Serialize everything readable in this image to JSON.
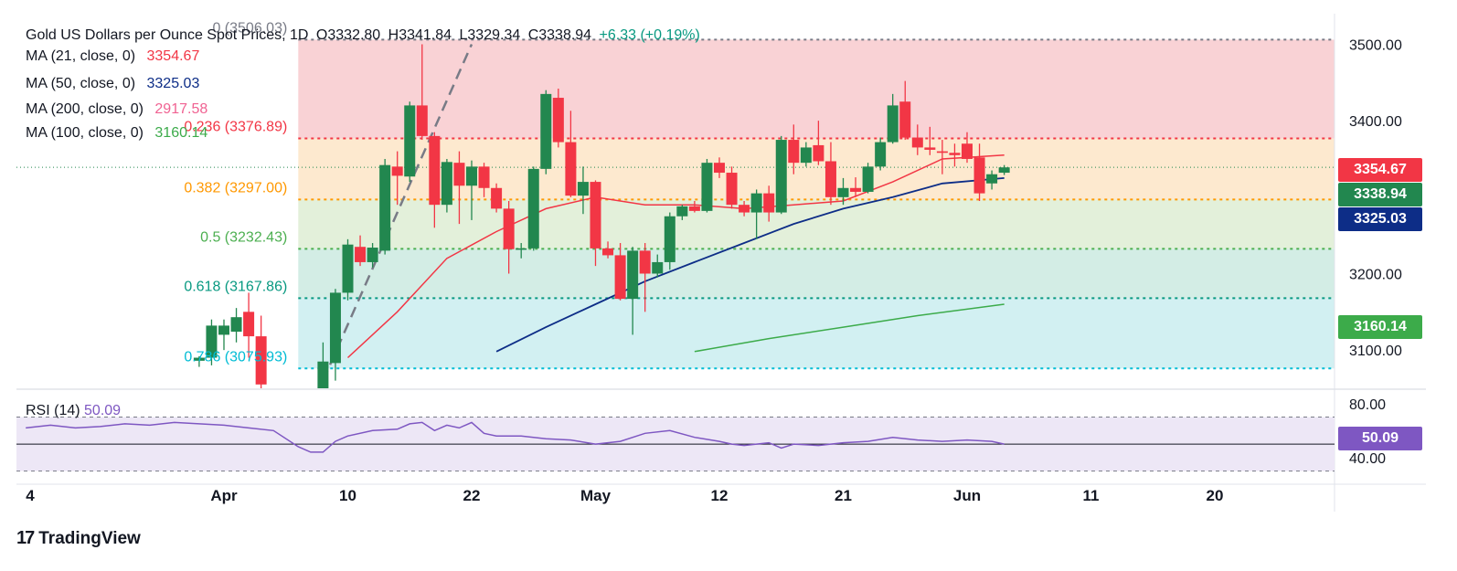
{
  "header": {
    "symbol": "Gold US Dollars per Ounce Spot Prices, 1D",
    "open": "O3332.80",
    "high": "H3341.84",
    "low": "L3329.34",
    "close": "C3338.94",
    "change": "+6.33 (+0.19%)",
    "change_color": "#089981"
  },
  "indicators": [
    {
      "name": "MA (21, close, 0)",
      "value": "3354.67",
      "color": "#f23645"
    },
    {
      "name": "MA (50, close, 0)",
      "value": "3325.03",
      "color": "#0d2d87"
    },
    {
      "name": "MA (200, close, 0)",
      "value": "2917.58",
      "color": "#f06292"
    },
    {
      "name": "MA (100, close, 0)",
      "value": "3160.14",
      "color": "#3cab4a"
    }
  ],
  "rsi": {
    "name": "RSI (14)",
    "value": "50.09",
    "color": "#7e57c2"
  },
  "price_tags": [
    {
      "label": "3354.67",
      "value": 3354.67,
      "color": "#f23645"
    },
    {
      "label": "3338.94",
      "value": 3338.94,
      "color": "#22874f"
    },
    {
      "label": "3325.03",
      "value": 3325.03,
      "color": "#0d2d87"
    },
    {
      "label": "3160.14",
      "value": 3160.14,
      "color": "#3cab4a"
    }
  ],
  "brand": {
    "name": "TradingView"
  },
  "chart_data": {
    "type": "candlestick",
    "y_axis": {
      "ticks": [
        3100,
        3200,
        3300,
        3400,
        3500
      ],
      "tick_labels": [
        "3100.00",
        "3200.00",
        "3300.00",
        "3400.00",
        "3500.00"
      ],
      "ylim": [
        3050,
        3540
      ],
      "position": "right"
    },
    "rsi_axis": {
      "ticks": [
        40,
        80
      ],
      "tick_labels": [
        "40.00",
        "80.00"
      ],
      "ylim": [
        25,
        90
      ],
      "bands": [
        30,
        70
      ],
      "midline": 50
    },
    "x_axis": {
      "tick_labels": [
        "4",
        "Apr",
        "10",
        "22",
        "May",
        "12",
        "21",
        "Jun",
        "11",
        "20"
      ],
      "tick_index": [
        -16,
        0,
        10,
        20,
        30,
        40,
        50,
        60,
        70,
        80
      ]
    },
    "fibonacci": [
      {
        "level": "0",
        "price": 3506.03,
        "label": "0 (3506.03)",
        "color": "#787b86"
      },
      {
        "level": "0.236",
        "price": 3376.89,
        "label": "0.236 (3376.89)",
        "color": "#f23645"
      },
      {
        "level": "0.382",
        "price": 3297.0,
        "label": "0.382 (3297.00)",
        "color": "#ff9800"
      },
      {
        "level": "0.5",
        "price": 3232.43,
        "label": "0.5 (3232.43)",
        "color": "#4caf50"
      },
      {
        "level": "0.618",
        "price": 3167.86,
        "label": "0.618 (3167.86)",
        "color": "#089981"
      },
      {
        "level": "0.786",
        "price": 3075.93,
        "label": "0.786 (3075.93)",
        "color": "#00bcd4"
      }
    ],
    "fib_zone_colors": [
      "#f9d2d5",
      "#fde9cf",
      "#e3f0da",
      "#d3ede5",
      "#d2f0f2"
    ],
    "trend_line": {
      "from": {
        "index": 8,
        "price": 3060
      },
      "to": {
        "index": 20,
        "price": 3500
      }
    },
    "candles": [
      {
        "i": -2,
        "o": 3086,
        "h": 3092,
        "l": 3078,
        "c": 3090
      },
      {
        "i": -1,
        "o": 3090,
        "h": 3140,
        "l": 3080,
        "c": 3132
      },
      {
        "i": 0,
        "o": 3120,
        "h": 3140,
        "l": 3100,
        "c": 3132
      },
      {
        "i": 1,
        "o": 3124,
        "h": 3155,
        "l": 3110,
        "c": 3143
      },
      {
        "i": 2,
        "o": 3150,
        "h": 3175,
        "l": 3090,
        "c": 3118
      },
      {
        "i": 3,
        "o": 3118,
        "h": 3145,
        "l": 3040,
        "c": 3055
      },
      {
        "i": 8,
        "o": 3000,
        "h": 3110,
        "l": 2970,
        "c": 3085
      },
      {
        "i": 9,
        "o": 3083,
        "h": 3180,
        "l": 3060,
        "c": 3175
      },
      {
        "i": 10,
        "o": 3175,
        "h": 3245,
        "l": 3165,
        "c": 3238
      },
      {
        "i": 11,
        "o": 3235,
        "h": 3250,
        "l": 3210,
        "c": 3215
      },
      {
        "i": 12,
        "o": 3215,
        "h": 3240,
        "l": 3208,
        "c": 3234
      },
      {
        "i": 13,
        "o": 3230,
        "h": 3350,
        "l": 3225,
        "c": 3342
      },
      {
        "i": 14,
        "o": 3340,
        "h": 3360,
        "l": 3290,
        "c": 3328
      },
      {
        "i": 15,
        "o": 3327,
        "h": 3425,
        "l": 3320,
        "c": 3420
      },
      {
        "i": 16,
        "o": 3420,
        "h": 3500,
        "l": 3375,
        "c": 3380
      },
      {
        "i": 17,
        "o": 3380,
        "h": 3385,
        "l": 3260,
        "c": 3290
      },
      {
        "i": 18,
        "o": 3290,
        "h": 3350,
        "l": 3280,
        "c": 3346
      },
      {
        "i": 19,
        "o": 3345,
        "h": 3360,
        "l": 3265,
        "c": 3315
      },
      {
        "i": 20,
        "o": 3315,
        "h": 3348,
        "l": 3270,
        "c": 3340
      },
      {
        "i": 21,
        "o": 3340,
        "h": 3345,
        "l": 3300,
        "c": 3312
      },
      {
        "i": 22,
        "o": 3312,
        "h": 3318,
        "l": 3280,
        "c": 3285
      },
      {
        "i": 23,
        "o": 3285,
        "h": 3295,
        "l": 3200,
        "c": 3232
      },
      {
        "i": 24,
        "o": 3232,
        "h": 3240,
        "l": 3220,
        "c": 3233
      },
      {
        "i": 25,
        "o": 3233,
        "h": 3340,
        "l": 3230,
        "c": 3337
      },
      {
        "i": 26,
        "o": 3337,
        "h": 3440,
        "l": 3330,
        "c": 3435
      },
      {
        "i": 27,
        "o": 3430,
        "h": 3442,
        "l": 3365,
        "c": 3372
      },
      {
        "i": 28,
        "o": 3372,
        "h": 3413,
        "l": 3300,
        "c": 3302
      },
      {
        "i": 29,
        "o": 3302,
        "h": 3340,
        "l": 3278,
        "c": 3320
      },
      {
        "i": 30,
        "o": 3320,
        "h": 3322,
        "l": 3210,
        "c": 3233
      },
      {
        "i": 31,
        "o": 3233,
        "h": 3242,
        "l": 3220,
        "c": 3224
      },
      {
        "i": 32,
        "o": 3224,
        "h": 3240,
        "l": 3165,
        "c": 3167
      },
      {
        "i": 33,
        "o": 3167,
        "h": 3235,
        "l": 3120,
        "c": 3230
      },
      {
        "i": 34,
        "o": 3230,
        "h": 3240,
        "l": 3150,
        "c": 3200
      },
      {
        "i": 35,
        "o": 3200,
        "h": 3225,
        "l": 3195,
        "c": 3215
      },
      {
        "i": 36,
        "o": 3215,
        "h": 3280,
        "l": 3205,
        "c": 3275
      },
      {
        "i": 37,
        "o": 3275,
        "h": 3290,
        "l": 3270,
        "c": 3288
      },
      {
        "i": 38,
        "o": 3288,
        "h": 3295,
        "l": 3280,
        "c": 3282
      },
      {
        "i": 39,
        "o": 3282,
        "h": 3350,
        "l": 3280,
        "c": 3345
      },
      {
        "i": 40,
        "o": 3345,
        "h": 3352,
        "l": 3325,
        "c": 3332
      },
      {
        "i": 41,
        "o": 3332,
        "h": 3340,
        "l": 3285,
        "c": 3290
      },
      {
        "i": 42,
        "o": 3290,
        "h": 3295,
        "l": 3275,
        "c": 3280
      },
      {
        "i": 43,
        "o": 3280,
        "h": 3310,
        "l": 3245,
        "c": 3305
      },
      {
        "i": 44,
        "o": 3305,
        "h": 3315,
        "l": 3268,
        "c": 3280
      },
      {
        "i": 45,
        "o": 3280,
        "h": 3380,
        "l": 3278,
        "c": 3375
      },
      {
        "i": 46,
        "o": 3375,
        "h": 3395,
        "l": 3330,
        "c": 3345
      },
      {
        "i": 47,
        "o": 3345,
        "h": 3372,
        "l": 3340,
        "c": 3365
      },
      {
        "i": 48,
        "o": 3368,
        "h": 3400,
        "l": 3342,
        "c": 3347
      },
      {
        "i": 49,
        "o": 3347,
        "h": 3372,
        "l": 3290,
        "c": 3300
      },
      {
        "i": 50,
        "o": 3300,
        "h": 3325,
        "l": 3290,
        "c": 3312
      },
      {
        "i": 51,
        "o": 3312,
        "h": 3326,
        "l": 3300,
        "c": 3307
      },
      {
        "i": 52,
        "o": 3307,
        "h": 3345,
        "l": 3305,
        "c": 3340
      },
      {
        "i": 53,
        "o": 3340,
        "h": 3378,
        "l": 3335,
        "c": 3372
      },
      {
        "i": 54,
        "o": 3372,
        "h": 3435,
        "l": 3370,
        "c": 3420
      },
      {
        "i": 55,
        "o": 3425,
        "h": 3452,
        "l": 3375,
        "c": 3378
      },
      {
        "i": 56,
        "o": 3378,
        "h": 3395,
        "l": 3355,
        "c": 3365
      },
      {
        "i": 57,
        "o": 3365,
        "h": 3392,
        "l": 3355,
        "c": 3362
      },
      {
        "i": 58,
        "o": 3360,
        "h": 3375,
        "l": 3330,
        "c": 3358
      },
      {
        "i": 59,
        "o": 3358,
        "h": 3370,
        "l": 3340,
        "c": 3355
      },
      {
        "i": 60,
        "o": 3370,
        "h": 3385,
        "l": 3345,
        "c": 3350
      },
      {
        "i": 61,
        "o": 3352,
        "h": 3370,
        "l": 3295,
        "c": 3305
      },
      {
        "i": 62,
        "o": 3318,
        "h": 3335,
        "l": 3310,
        "c": 3330
      },
      {
        "i": 63,
        "o": 3332,
        "h": 3342,
        "l": 3329,
        "c": 3339
      }
    ],
    "ma21": [
      [
        10,
        3090
      ],
      [
        14,
        3150
      ],
      [
        18,
        3220
      ],
      [
        22,
        3255
      ],
      [
        26,
        3285
      ],
      [
        30,
        3300
      ],
      [
        34,
        3290
      ],
      [
        38,
        3290
      ],
      [
        42,
        3285
      ],
      [
        46,
        3290
      ],
      [
        50,
        3295
      ],
      [
        54,
        3320
      ],
      [
        58,
        3350
      ],
      [
        63,
        3355
      ]
    ],
    "ma50": [
      [
        22,
        3098
      ],
      [
        26,
        3130
      ],
      [
        30,
        3160
      ],
      [
        34,
        3190
      ],
      [
        38,
        3215
      ],
      [
        42,
        3240
      ],
      [
        46,
        3265
      ],
      [
        50,
        3285
      ],
      [
        54,
        3300
      ],
      [
        58,
        3318
      ],
      [
        63,
        3325
      ]
    ],
    "ma100": [
      [
        38,
        3098
      ],
      [
        44,
        3115
      ],
      [
        50,
        3130
      ],
      [
        56,
        3145
      ],
      [
        63,
        3160
      ]
    ],
    "rsi_values": [
      [
        -16,
        62
      ],
      [
        -14,
        64
      ],
      [
        -12,
        62
      ],
      [
        -10,
        63
      ],
      [
        -8,
        65
      ],
      [
        -6,
        64
      ],
      [
        -4,
        66
      ],
      [
        -2,
        65
      ],
      [
        0,
        64
      ],
      [
        2,
        62
      ],
      [
        4,
        60
      ],
      [
        6,
        48
      ],
      [
        7,
        44
      ],
      [
        8,
        44
      ],
      [
        9,
        52
      ],
      [
        10,
        56
      ],
      [
        12,
        60
      ],
      [
        14,
        61
      ],
      [
        15,
        65
      ],
      [
        16,
        66
      ],
      [
        17,
        60
      ],
      [
        18,
        64
      ],
      [
        19,
        62
      ],
      [
        20,
        66
      ],
      [
        21,
        58
      ],
      [
        22,
        56
      ],
      [
        24,
        56
      ],
      [
        26,
        54
      ],
      [
        28,
        53
      ],
      [
        30,
        50
      ],
      [
        32,
        52
      ],
      [
        34,
        58
      ],
      [
        36,
        60
      ],
      [
        38,
        55
      ],
      [
        40,
        52
      ],
      [
        41,
        50
      ],
      [
        42,
        49
      ],
      [
        44,
        51
      ],
      [
        45,
        47
      ],
      [
        46,
        50
      ],
      [
        48,
        49
      ],
      [
        50,
        51
      ],
      [
        52,
        52
      ],
      [
        54,
        55
      ],
      [
        56,
        53
      ],
      [
        58,
        52
      ],
      [
        60,
        53
      ],
      [
        62,
        52
      ],
      [
        63,
        50
      ]
    ]
  }
}
